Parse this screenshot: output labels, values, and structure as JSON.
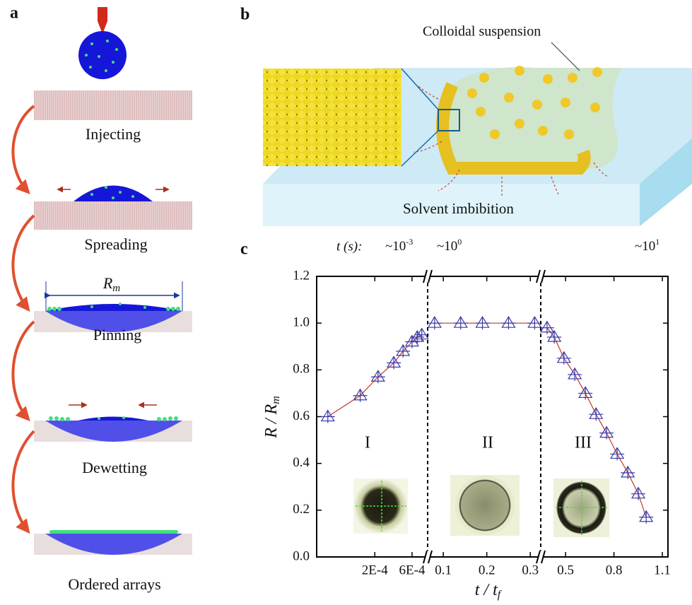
{
  "panel_a": {
    "label": "a",
    "steps": [
      "Injecting",
      "Spreading",
      "Pinning",
      "Dewetting",
      "Ordered arrays"
    ],
    "radius_label": {
      "base": "R",
      "sub": "m"
    }
  },
  "panel_b": {
    "label": "b",
    "callout": "Colloidal suspension",
    "caption": "Solvent imbibition"
  },
  "chart_data": {
    "type": "line",
    "panel_label": "c",
    "y_label": {
      "base": "R / R",
      "sub": "m"
    },
    "x_label": {
      "base": "t / t",
      "sub": "f"
    },
    "time_label": "t (s):",
    "time_marks": [
      {
        "base": "~10",
        "sup": "-3"
      },
      {
        "base": "~10",
        "sup": "0"
      },
      {
        "base": "~10",
        "sup": "1"
      }
    ],
    "regions": [
      "I",
      "II",
      "III"
    ],
    "line_color": "#c0392b",
    "marker_color": "#3a3aa8",
    "ylim": [
      0,
      1.2
    ],
    "yticks": [
      {
        "value": 0,
        "label": "0.0"
      },
      0.2,
      0.4,
      0.6,
      0.8,
      {
        "value": 1,
        "label": "1.0"
      },
      1.2
    ],
    "segments": [
      {
        "log": true,
        "xlim": [
          3.6e-05,
          0.00095
        ],
        "xticks": [
          {
            "value": 0.0002,
            "label": "2E-4"
          },
          {
            "value": 0.0006,
            "label": "6E-4"
          }
        ],
        "x": [
          5e-05,
          0.00013,
          0.00022,
          0.00035,
          0.00046,
          0.0006,
          0.0007,
          0.0008
        ],
        "values": [
          0.6,
          0.69,
          0.77,
          0.83,
          0.88,
          0.92,
          0.94,
          0.95
        ]
      },
      {
        "log": false,
        "xlim": [
          0.064,
          0.324
        ],
        "xticks": [
          0.1,
          0.2,
          0.3
        ],
        "x": [
          0.08,
          0.14,
          0.19,
          0.25,
          0.31
        ],
        "values": [
          1,
          1,
          1,
          1,
          1
        ]
      },
      {
        "log": false,
        "xlim": [
          0.346,
          1.135
        ],
        "xticks": [
          0.5,
          0.8,
          1.1
        ],
        "x": [
          0.385,
          0.43,
          0.49,
          0.557,
          0.623,
          0.689,
          0.754,
          0.82,
          0.886,
          0.951,
          1.0
        ],
        "values": [
          0.98,
          0.94,
          0.85,
          0.78,
          0.7,
          0.61,
          0.53,
          0.44,
          0.36,
          0.27,
          0.17
        ]
      }
    ]
  }
}
